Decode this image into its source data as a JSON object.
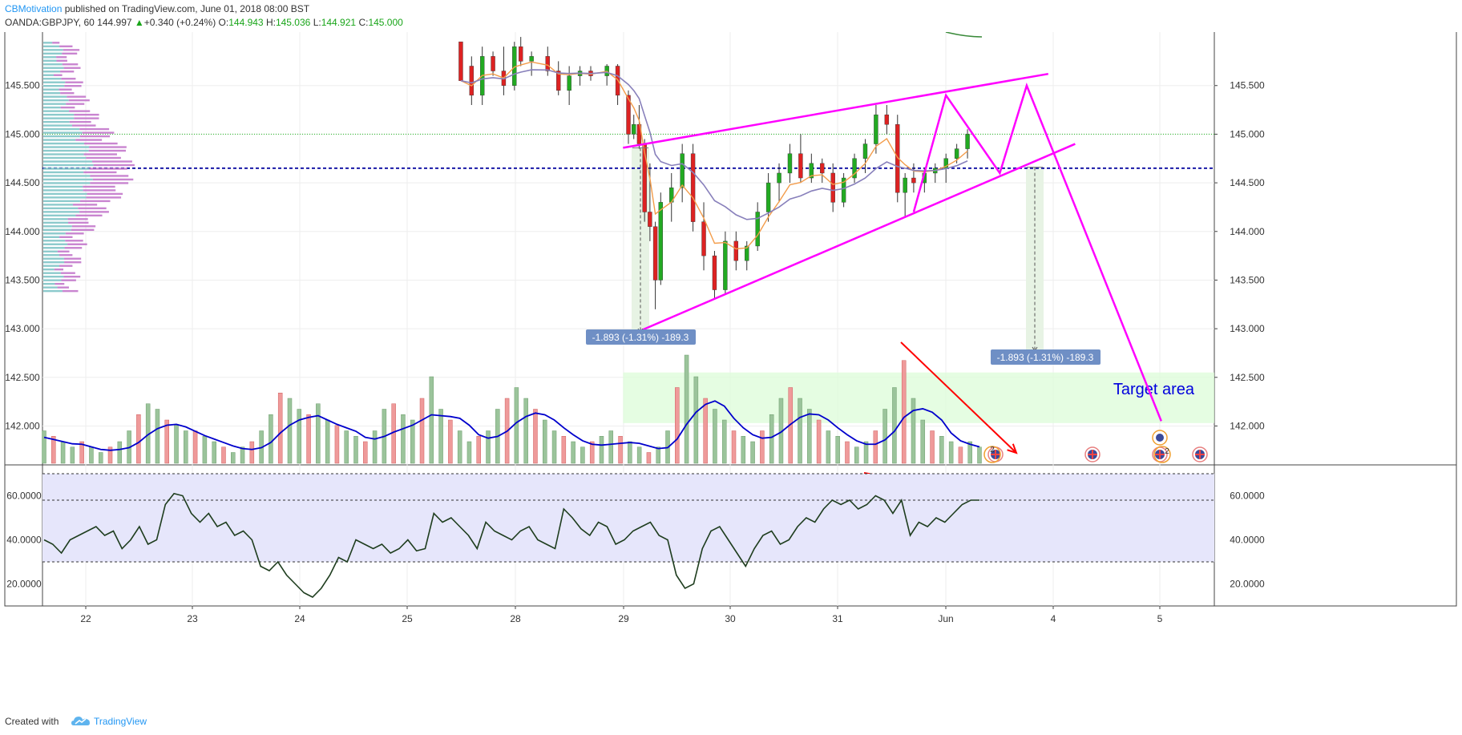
{
  "header": {
    "author": "CBMotivation",
    "published_text": "published on TradingView.com, June 01, 2018 08:00 BST",
    "symbol": "OANDA:GBPJPY, 60",
    "last": "144.997",
    "change": "+0.340 (+0.24%)",
    "open_label": "O:",
    "open_value": "144.943",
    "high_label": "H:",
    "high_value": "145.036",
    "low_label": "L:",
    "low_value": "144.921",
    "close_label": "C:",
    "close_value": "145.000"
  },
  "footer": {
    "created_label": "Created with",
    "brand": "TradingView"
  },
  "colors": {
    "bull": "#26a69a",
    "bear": "#ef5350",
    "pattern": "#ff00ff",
    "arrow": "#ff0000",
    "vol_ma": "#0000cc",
    "rsi_line": "#1e3d1e",
    "rsi_band": "#e6e6fb",
    "target_zone": "#dcfcd8",
    "measure_label": "#6f8fc5",
    "level_line": "#1a1aa6"
  },
  "chart_data": [
    {
      "type": "candlestick",
      "symbol": "OANDA:GBPJPY",
      "timeframe": "60",
      "x_ticks": [
        "22",
        "23",
        "24",
        "25",
        "28",
        "29",
        "30",
        "31",
        "Jun",
        "4",
        "5"
      ],
      "y_ticks": [
        "145.500",
        "145.000",
        "144.500",
        "144.000",
        "143.500",
        "143.000",
        "142.500",
        "142.000"
      ],
      "ylim": [
        141.6,
        146.05
      ],
      "horizontal_levels": [
        {
          "name": "current-price",
          "value": 145.0,
          "style": "dotted-green"
        },
        {
          "name": "volume-profile-poc",
          "value": 144.65,
          "style": "dashed-blue"
        }
      ],
      "pattern": {
        "name": "rising wedge",
        "upper_trendline": [
          [
            29.0,
            144.86
          ],
          [
            32.95,
            145.62
          ]
        ],
        "lower_trendline": [
          [
            29.12,
            142.96
          ],
          [
            33.2,
            144.9
          ]
        ],
        "projected_path": [
          [
            31.7,
            144.2
          ],
          [
            32.0,
            145.4
          ],
          [
            32.5,
            144.6
          ],
          [
            32.75,
            145.5
          ],
          [
            34.0,
            142.05
          ]
        ]
      },
      "measurements": [
        {
          "label": "-1.893 (-1.31%) -189.3",
          "from": 144.86,
          "to": 142.96,
          "at": "29"
        },
        {
          "label": "-1.893 (-1.31%) -189.3",
          "from": 144.66,
          "to": 142.77,
          "at": "Jun"
        }
      ],
      "target_zone": {
        "label": "Target area",
        "from_price": 142.03,
        "to_price": 142.55
      },
      "annotations": [
        "red arrow pointing down-right toward target"
      ],
      "candles_ohlc": [
        [
          25.5,
          145.95,
          145.7,
          145.9,
          145.55
        ],
        [
          25.6,
          145.7,
          145.8,
          145.3,
          145.4
        ],
        [
          25.7,
          145.4,
          145.9,
          145.3,
          145.8
        ],
        [
          25.8,
          145.8,
          145.85,
          145.6,
          145.65
        ],
        [
          25.9,
          145.65,
          145.9,
          145.4,
          145.5
        ],
        [
          26.0,
          145.5,
          145.95,
          145.45,
          145.9
        ],
        [
          28.05,
          145.9,
          146.0,
          145.7,
          145.75
        ],
        [
          28.15,
          145.75,
          145.85,
          145.6,
          145.8
        ],
        [
          28.3,
          145.8,
          145.9,
          145.6,
          145.65
        ],
        [
          28.4,
          145.65,
          145.75,
          145.4,
          145.45
        ],
        [
          28.5,
          145.45,
          145.7,
          145.3,
          145.6
        ],
        [
          28.6,
          145.6,
          145.7,
          145.5,
          145.65
        ],
        [
          28.7,
          145.65,
          145.7,
          145.55,
          145.6
        ],
        [
          28.85,
          145.6,
          145.72,
          145.5,
          145.7
        ],
        [
          28.95,
          145.7,
          145.72,
          145.3,
          145.4
        ],
        [
          29.05,
          145.4,
          145.45,
          144.9,
          145.0
        ],
        [
          29.1,
          145.0,
          145.2,
          144.95,
          145.1
        ],
        [
          29.15,
          145.1,
          145.3,
          144.85,
          144.9
        ],
        [
          29.2,
          144.9,
          144.95,
          144.1,
          144.2
        ],
        [
          29.25,
          144.2,
          144.7,
          143.9,
          144.05
        ],
        [
          29.3,
          144.05,
          144.1,
          143.2,
          143.5
        ],
        [
          29.35,
          143.5,
          144.4,
          143.45,
          144.3
        ],
        [
          29.45,
          144.3,
          144.6,
          144.1,
          144.45
        ],
        [
          29.55,
          144.45,
          144.9,
          144.3,
          144.8
        ],
        [
          29.65,
          144.8,
          144.9,
          144.0,
          144.1
        ],
        [
          29.75,
          144.1,
          144.3,
          143.6,
          143.75
        ],
        [
          29.85,
          143.75,
          143.8,
          143.3,
          143.4
        ],
        [
          29.95,
          143.4,
          144.0,
          143.35,
          143.9
        ],
        [
          30.05,
          143.9,
          144.0,
          143.6,
          143.7
        ],
        [
          30.15,
          143.7,
          143.9,
          143.6,
          143.85
        ],
        [
          30.25,
          143.85,
          144.3,
          143.8,
          144.2
        ],
        [
          30.35,
          144.2,
          144.6,
          144.1,
          144.5
        ],
        [
          30.45,
          144.5,
          144.7,
          144.3,
          144.6
        ],
        [
          30.55,
          144.6,
          144.9,
          144.5,
          144.8
        ],
        [
          30.65,
          144.8,
          145.0,
          144.5,
          144.55
        ],
        [
          30.75,
          144.55,
          144.8,
          144.5,
          144.7
        ],
        [
          30.85,
          144.7,
          144.75,
          144.5,
          144.6
        ],
        [
          30.95,
          144.6,
          144.7,
          144.2,
          144.3
        ],
        [
          31.05,
          144.3,
          144.6,
          144.25,
          144.55
        ],
        [
          31.15,
          144.55,
          144.8,
          144.5,
          144.75
        ],
        [
          31.25,
          144.75,
          144.95,
          144.6,
          144.9
        ],
        [
          31.35,
          144.9,
          145.3,
          144.8,
          145.2
        ],
        [
          31.45,
          145.2,
          145.3,
          145.0,
          145.1
        ],
        [
          31.55,
          145.1,
          145.2,
          144.3,
          144.4
        ],
        [
          31.62,
          144.4,
          144.6,
          144.15,
          144.55
        ],
        [
          31.7,
          144.55,
          144.7,
          144.4,
          144.5
        ],
        [
          31.8,
          144.5,
          144.65,
          144.4,
          144.6
        ],
        [
          31.9,
          144.6,
          144.7,
          144.5,
          144.65
        ],
        [
          32.0,
          144.65,
          144.8,
          144.5,
          144.75
        ],
        [
          32.1,
          144.75,
          144.9,
          144.7,
          144.85
        ],
        [
          32.2,
          144.85,
          145.05,
          144.75,
          145.0
        ]
      ]
    },
    {
      "type": "bar",
      "title": "Volume",
      "subtype": "overlay",
      "moving_average": "blue line",
      "relative_values": [
        0.3,
        0.25,
        0.2,
        0.15,
        0.2,
        0.15,
        0.1,
        0.15,
        0.2,
        0.3,
        0.45,
        0.55,
        0.5,
        0.4,
        0.35,
        0.3,
        0.3,
        0.25,
        0.2,
        0.15,
        0.1,
        0.15,
        0.2,
        0.3,
        0.45,
        0.65,
        0.6,
        0.5,
        0.45,
        0.55,
        0.4,
        0.35,
        0.3,
        0.25,
        0.2,
        0.3,
        0.5,
        0.55,
        0.45,
        0.4,
        0.6,
        0.8,
        0.5,
        0.4,
        0.3,
        0.2,
        0.25,
        0.3,
        0.5,
        0.6,
        0.7,
        0.6,
        0.5,
        0.4,
        0.3,
        0.25,
        0.2,
        0.15,
        0.2,
        0.25,
        0.3,
        0.25,
        0.2,
        0.15,
        0.1,
        0.15,
        0.3,
        0.7,
        1.0,
        0.8,
        0.6,
        0.5,
        0.4,
        0.3,
        0.25,
        0.2,
        0.3,
        0.45,
        0.6,
        0.7,
        0.6,
        0.5,
        0.4,
        0.3,
        0.25,
        0.2,
        0.15,
        0.2,
        0.3,
        0.5,
        0.7,
        0.95,
        0.6,
        0.4,
        0.3,
        0.25,
        0.2,
        0.15,
        0.2,
        0.15
      ]
    },
    {
      "type": "line",
      "title": "RSI",
      "y_ticks": [
        "60.0000",
        "40.0000",
        "20.0000"
      ],
      "ylim": [
        10,
        74
      ],
      "band": [
        30,
        70
      ],
      "reference_levels": [
        30,
        58,
        70
      ],
      "values": [
        40,
        38,
        34,
        40,
        42,
        44,
        46,
        42,
        44,
        36,
        40,
        46,
        38,
        40,
        56,
        61,
        60,
        52,
        48,
        52,
        46,
        48,
        42,
        44,
        40,
        28,
        26,
        30,
        24,
        20,
        16,
        14,
        18,
        24,
        32,
        30,
        40,
        38,
        36,
        38,
        34,
        36,
        40,
        35,
        36,
        52,
        48,
        50,
        46,
        42,
        36,
        48,
        44,
        42,
        40,
        44,
        46,
        40,
        38,
        36,
        54,
        50,
        45,
        42,
        48,
        46,
        38,
        40,
        44,
        46,
        48,
        42,
        40,
        24,
        18,
        20,
        36,
        44,
        46,
        40,
        34,
        28,
        36,
        42,
        44,
        38,
        40,
        46,
        50,
        48,
        54,
        58,
        56,
        58,
        54,
        56,
        60,
        58,
        52,
        58,
        42,
        48,
        46,
        50,
        48,
        52,
        56,
        58,
        58
      ],
      "divergence_arrow": "red line from higher highs on price to lower highs on RSI"
    }
  ],
  "event_icons": [
    "uk-flag-icon",
    "uk-flag-icon",
    "uk-flag-icon",
    "uk-flag-icon"
  ],
  "event_counts": [
    "2",
    "2"
  ]
}
